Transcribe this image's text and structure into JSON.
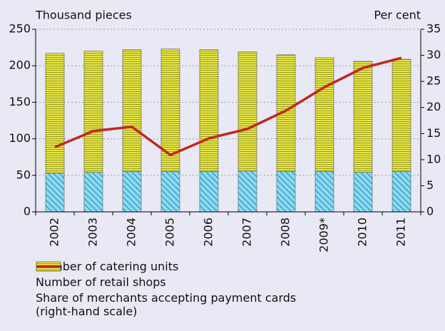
{
  "chart_data": {
    "type": "bar",
    "y_label": "Thousand pieces",
    "y2_label": "Per cent",
    "categories": [
      "2002",
      "2003",
      "2004",
      "2005",
      "2006",
      "2007",
      "2008",
      "2009*",
      "2010",
      "2011"
    ],
    "series": [
      {
        "name": "Number of catering units",
        "color": "#86dcf2",
        "type": "bar",
        "values": [
          53,
          54,
          55,
          55,
          55,
          56,
          55,
          55,
          54,
          55
        ]
      },
      {
        "name": "Number of retail shops",
        "color": "#e6e64a",
        "type": "bar",
        "values": [
          164,
          166,
          167,
          168,
          167,
          163,
          160,
          156,
          152,
          154
        ]
      },
      {
        "name": "Share of merchants accepting payment cards\n(right-hand scale)",
        "color": "#c0281e",
        "type": "line",
        "axis": "y2",
        "values": [
          12.4,
          15.5,
          16.3,
          10.9,
          14.1,
          15.9,
          19.4,
          23.9,
          27.6,
          29.5
        ]
      }
    ],
    "ylim": [
      0,
      250
    ],
    "yticks": [
      0,
      50,
      100,
      150,
      200,
      250
    ],
    "y2lim": [
      0,
      35
    ],
    "y2ticks": [
      0,
      5,
      10,
      15,
      20,
      25,
      30,
      35
    ],
    "grid": true,
    "stacked": true
  }
}
